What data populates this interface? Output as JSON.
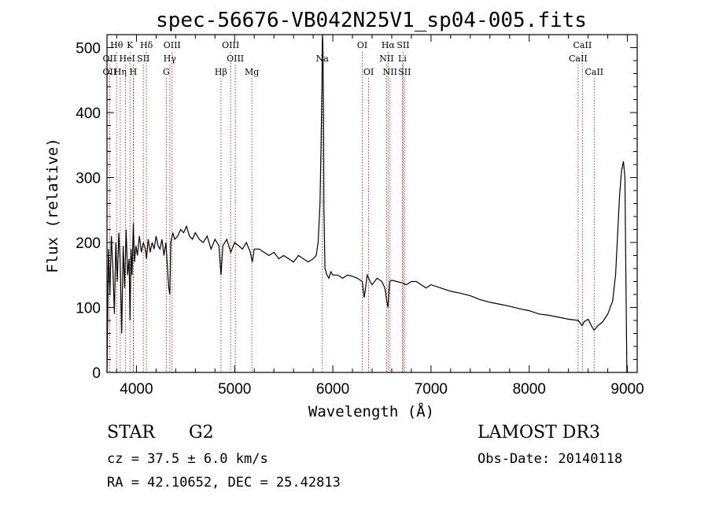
{
  "chart_data": {
    "type": "line",
    "title": "spec-56676-VB042N25V1_sp04-005.fits",
    "xlabel": "Wavelength (Å)",
    "ylabel": "Flux (relative)",
    "xlim": [
      3700,
      9100
    ],
    "ylim": [
      0,
      520
    ],
    "x_ticks": [
      4000,
      5000,
      6000,
      7000,
      8000,
      9000
    ],
    "y_ticks": [
      0,
      100,
      200,
      300,
      400,
      500
    ],
    "series": [
      {
        "name": "flux",
        "x": [
          3700,
          3715,
          3730,
          3745,
          3760,
          3775,
          3790,
          3805,
          3820,
          3835,
          3850,
          3865,
          3880,
          3895,
          3910,
          3925,
          3935,
          3945,
          3955,
          3968,
          3980,
          3995,
          4010,
          4030,
          4050,
          4070,
          4090,
          4102,
          4120,
          4140,
          4160,
          4180,
          4200,
          4220,
          4240,
          4260,
          4280,
          4300,
          4320,
          4330,
          4340,
          4350,
          4370,
          4390,
          4420,
          4450,
          4480,
          4510,
          4540,
          4570,
          4600,
          4640,
          4680,
          4720,
          4760,
          4800,
          4840,
          4861,
          4880,
          4920,
          4960,
          5000,
          5040,
          5080,
          5120,
          5160,
          5180,
          5200,
          5250,
          5300,
          5350,
          5400,
          5450,
          5500,
          5550,
          5600,
          5650,
          5700,
          5750,
          5800,
          5830,
          5850,
          5870,
          5880,
          5890,
          5893,
          5896,
          5900,
          5905,
          5910,
          5920,
          5940,
          5960,
          5980,
          6000,
          6050,
          6100,
          6150,
          6200,
          6250,
          6300,
          6320,
          6350,
          6380,
          6400,
          6450,
          6500,
          6530,
          6550,
          6563,
          6570,
          6580,
          6600,
          6650,
          6700,
          6750,
          6800,
          6850,
          6900,
          6950,
          7000,
          7100,
          7200,
          7300,
          7400,
          7500,
          7600,
          7700,
          7800,
          7900,
          8000,
          8100,
          8200,
          8300,
          8400,
          8500,
          8540,
          8560,
          8600,
          8640,
          8660,
          8700,
          8750,
          8800,
          8850,
          8880,
          8900,
          8920,
          8940,
          8960,
          8975,
          8985,
          8995,
          9000
        ],
        "values": [
          0,
          190,
          120,
          210,
          160,
          90,
          200,
          140,
          215,
          170,
          60,
          195,
          130,
          220,
          150,
          175,
          80,
          190,
          150,
          230,
          170,
          195,
          180,
          210,
          185,
          200,
          190,
          175,
          205,
          185,
          200,
          190,
          210,
          195,
          190,
          205,
          180,
          200,
          150,
          130,
          120,
          200,
          215,
          205,
          210,
          220,
          215,
          225,
          210,
          205,
          215,
          205,
          200,
          210,
          190,
          205,
          195,
          150,
          195,
          205,
          185,
          200,
          195,
          190,
          200,
          185,
          170,
          190,
          190,
          185,
          180,
          185,
          175,
          180,
          175,
          170,
          180,
          175,
          170,
          175,
          180,
          200,
          260,
          350,
          440,
          510,
          520,
          490,
          400,
          250,
          160,
          150,
          145,
          155,
          150,
          150,
          145,
          150,
          148,
          145,
          140,
          115,
          150,
          140,
          135,
          145,
          140,
          130,
          110,
          100,
          120,
          140,
          142,
          140,
          138,
          135,
          140,
          140,
          135,
          130,
          135,
          130,
          125,
          122,
          118,
          112,
          108,
          105,
          102,
          98,
          95,
          90,
          88,
          85,
          82,
          80,
          72,
          78,
          82,
          70,
          65,
          72,
          78,
          90,
          110,
          150,
          210,
          270,
          310,
          325,
          300,
          150,
          0,
          0
        ]
      }
    ],
    "lines_top": [
      {
        "label": "Hθ",
        "x": 3798
      },
      {
        "label": "K",
        "x": 3934
      },
      {
        "label": "Hδ",
        "x": 4102
      },
      {
        "label": "OIII",
        "x": 4363
      },
      {
        "label": "OIII",
        "x": 4959
      },
      {
        "label": "OI",
        "x": 6300
      },
      {
        "label": "Hα",
        "x": 6563
      },
      {
        "label": "SII",
        "x": 6716
      },
      {
        "label": "CaII",
        "x": 8542
      }
    ],
    "lines_mid": [
      {
        "label": "OII",
        "x": 3727
      },
      {
        "label": "He",
        "x": 3889
      },
      {
        "label": "I",
        "x": 3970
      },
      {
        "label": "SII",
        "x": 4070
      },
      {
        "label": "Hγ",
        "x": 4340
      },
      {
        "label": "OIII",
        "x": 5007
      },
      {
        "label": "Na",
        "x": 5893
      },
      {
        "label": "NII",
        "x": 6548
      },
      {
        "label": "Li",
        "x": 6708
      },
      {
        "label": "CaII",
        "x": 8498
      }
    ],
    "lines_low": [
      {
        "label": "OII",
        "x": 3727
      },
      {
        "label": "Hη",
        "x": 3835
      },
      {
        "label": "H",
        "x": 3968
      },
      {
        "label": "G",
        "x": 4304
      },
      {
        "label": "Hβ",
        "x": 4861
      },
      {
        "label": "Mg",
        "x": 5175
      },
      {
        "label": "OI",
        "x": 6364
      },
      {
        "label": "NII",
        "x": 6583
      },
      {
        "label": "SII",
        "x": 6731
      },
      {
        "label": "CaII",
        "x": 8662
      }
    ],
    "colors": {
      "line": "#000000",
      "marker_line": "#b22222"
    }
  },
  "info": {
    "class_label": "STAR",
    "subclass": "G2",
    "survey": "LAMOST DR3",
    "cz": "cz = 37.5 ± 6.0 km/s",
    "obs_date": "Obs-Date: 20140118",
    "coords": "RA =  42.10652, DEC =  25.42813"
  }
}
